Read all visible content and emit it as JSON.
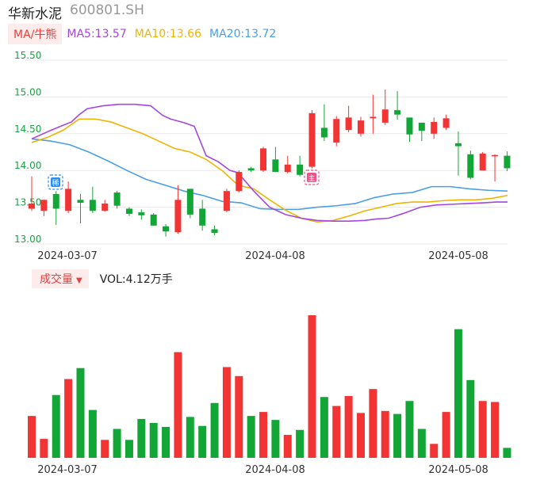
{
  "header": {
    "stock_name": "华新水泥",
    "stock_code": "600801.SH"
  },
  "ma_legend": {
    "selector_label": "MA/牛熊",
    "ma5": "MA5:13.57",
    "ma10": "MA10:13.66",
    "ma20": "MA20:13.72"
  },
  "volume_legend": {
    "selector_label": "成交量",
    "caret": "▼",
    "vol_text": "VOL:4.12万手"
  },
  "markers": {
    "marker1_label": "稀",
    "marker2_label": "主"
  },
  "colors": {
    "up": "#f23434",
    "down": "#12a637",
    "ma5": "#a347e0",
    "ma10": "#f0b400",
    "ma20": "#4a9ee8",
    "axis_text": "#1ba045"
  },
  "chart_data": [
    {
      "type": "candlestick",
      "y_ticks": [
        "15.50",
        "15.00",
        "14.50",
        "14.00",
        "13.50",
        "13.00"
      ],
      "ylim": [
        13.0,
        15.5
      ],
      "x_tick_labels": [
        "2024-03-07",
        "2024-04-08",
        "2024-05-08"
      ],
      "candles": [
        {
          "o": 13.48,
          "h": 13.92,
          "l": 13.45,
          "c": 13.55
        },
        {
          "o": 13.45,
          "h": 13.6,
          "l": 13.38,
          "c": 13.6
        },
        {
          "o": 13.68,
          "h": 13.72,
          "l": 13.26,
          "c": 13.48
        },
        {
          "o": 13.45,
          "h": 13.85,
          "l": 13.42,
          "c": 13.75
        },
        {
          "o": 13.6,
          "h": 13.68,
          "l": 13.28,
          "c": 13.56
        },
        {
          "o": 13.6,
          "h": 13.78,
          "l": 13.42,
          "c": 13.45
        },
        {
          "o": 13.45,
          "h": 13.6,
          "l": 13.44,
          "c": 13.55
        },
        {
          "o": 13.7,
          "h": 13.72,
          "l": 13.48,
          "c": 13.52
        },
        {
          "o": 13.48,
          "h": 13.5,
          "l": 13.38,
          "c": 13.41
        },
        {
          "o": 13.43,
          "h": 13.47,
          "l": 13.33,
          "c": 13.39
        },
        {
          "o": 13.4,
          "h": 13.42,
          "l": 13.25,
          "c": 13.25
        },
        {
          "o": 13.24,
          "h": 13.27,
          "l": 13.1,
          "c": 13.17
        },
        {
          "o": 13.16,
          "h": 13.8,
          "l": 13.14,
          "c": 13.6
        },
        {
          "o": 13.75,
          "h": 13.75,
          "l": 13.35,
          "c": 13.4
        },
        {
          "o": 13.48,
          "h": 13.6,
          "l": 13.18,
          "c": 13.25
        },
        {
          "o": 13.2,
          "h": 13.25,
          "l": 13.12,
          "c": 13.15
        },
        {
          "o": 13.45,
          "h": 13.75,
          "l": 13.43,
          "c": 13.72
        },
        {
          "o": 13.72,
          "h": 14.0,
          "l": 13.7,
          "c": 13.98
        },
        {
          "o": 14.03,
          "h": 14.05,
          "l": 13.98,
          "c": 14.0
        },
        {
          "o": 14.0,
          "h": 14.32,
          "l": 13.98,
          "c": 14.3
        },
        {
          "o": 14.15,
          "h": 14.32,
          "l": 13.98,
          "c": 13.98
        },
        {
          "o": 13.98,
          "h": 14.2,
          "l": 13.96,
          "c": 14.08
        },
        {
          "o": 14.08,
          "h": 14.2,
          "l": 13.92,
          "c": 13.94
        },
        {
          "o": 14.05,
          "h": 14.82,
          "l": 14.03,
          "c": 14.78
        },
        {
          "o": 14.58,
          "h": 14.9,
          "l": 14.4,
          "c": 14.45
        },
        {
          "o": 14.38,
          "h": 14.74,
          "l": 14.33,
          "c": 14.7
        },
        {
          "o": 14.55,
          "h": 14.88,
          "l": 14.52,
          "c": 14.72
        },
        {
          "o": 14.5,
          "h": 14.73,
          "l": 14.46,
          "c": 14.68
        },
        {
          "o": 14.71,
          "h": 15.03,
          "l": 14.5,
          "c": 14.73
        },
        {
          "o": 14.65,
          "h": 15.1,
          "l": 14.62,
          "c": 14.83
        },
        {
          "o": 14.82,
          "h": 15.08,
          "l": 14.69,
          "c": 14.76
        },
        {
          "o": 14.72,
          "h": 14.72,
          "l": 14.39,
          "c": 14.49
        },
        {
          "o": 14.65,
          "h": 14.65,
          "l": 14.4,
          "c": 14.54
        },
        {
          "o": 14.5,
          "h": 14.72,
          "l": 14.43,
          "c": 14.66
        },
        {
          "o": 14.58,
          "h": 14.76,
          "l": 14.55,
          "c": 14.71
        },
        {
          "o": 14.37,
          "h": 14.53,
          "l": 13.93,
          "c": 14.33
        },
        {
          "o": 14.22,
          "h": 14.27,
          "l": 13.88,
          "c": 13.9
        },
        {
          "o": 14.0,
          "h": 14.25,
          "l": 14.0,
          "c": 14.23
        },
        {
          "o": 14.21,
          "h": 14.22,
          "l": 13.85,
          "c": 14.21
        },
        {
          "o": 14.2,
          "h": 14.26,
          "l": 13.99,
          "c": 14.03
        }
      ],
      "ma5": [
        14.43,
        14.55,
        14.66,
        14.76,
        14.84,
        14.88,
        14.9,
        14.9,
        14.88,
        14.75,
        14.7,
        14.65,
        14.6,
        14.2,
        14.12,
        14.0,
        13.97,
        13.72,
        13.5,
        13.4,
        13.35,
        13.32,
        13.31,
        13.31,
        13.32,
        13.34,
        13.35,
        13.42,
        13.5,
        13.53,
        13.54,
        13.55,
        13.56,
        13.57,
        13.57
      ],
      "ma5_x": [
        40,
        65,
        90,
        100,
        110,
        130,
        150,
        170,
        190,
        205,
        215,
        232,
        245,
        260,
        275,
        290,
        300,
        320,
        340,
        360,
        380,
        400,
        420,
        440,
        460,
        475,
        490,
        510,
        530,
        550,
        570,
        590,
        610,
        625,
        640
      ],
      "ma10": [
        14.38,
        14.45,
        14.55,
        14.7,
        14.7,
        14.66,
        14.58,
        14.5,
        14.4,
        14.3,
        14.25,
        14.15,
        14.0,
        13.8,
        13.75,
        13.6,
        13.46,
        13.35,
        13.3,
        13.32,
        13.38,
        13.45,
        13.5,
        13.55,
        13.57,
        13.57,
        13.59,
        13.6,
        13.6,
        13.62,
        13.66
      ],
      "ma20": [
        14.43,
        14.4,
        14.35,
        14.25,
        14.13,
        14.0,
        13.88,
        13.8,
        13.72,
        13.66,
        13.58,
        13.56,
        13.48,
        13.47,
        13.47,
        13.5,
        13.52,
        13.55,
        13.63,
        13.68,
        13.7,
        13.78,
        13.78,
        13.75,
        13.73,
        13.72
      ]
    },
    {
      "type": "bar",
      "name": "volume",
      "x_tick_labels": [
        "2024-03-07",
        "2024-04-08",
        "2024-05-08"
      ],
      "values": [
        4.2,
        1.9,
        6.3,
        7.9,
        9.0,
        4.8,
        1.8,
        2.9,
        1.8,
        3.9,
        3.5,
        3.1,
        10.6,
        4.1,
        3.2,
        5.5,
        9.1,
        8.2,
        4.2,
        4.6,
        3.8,
        2.3,
        2.8,
        14.3,
        6.1,
        5.2,
        6.2,
        4.5,
        6.9,
        4.7,
        4.4,
        5.7,
        2.9,
        1.4,
        4.6,
        12.9,
        7.8,
        5.7,
        5.6,
        1.0
      ]
    }
  ]
}
